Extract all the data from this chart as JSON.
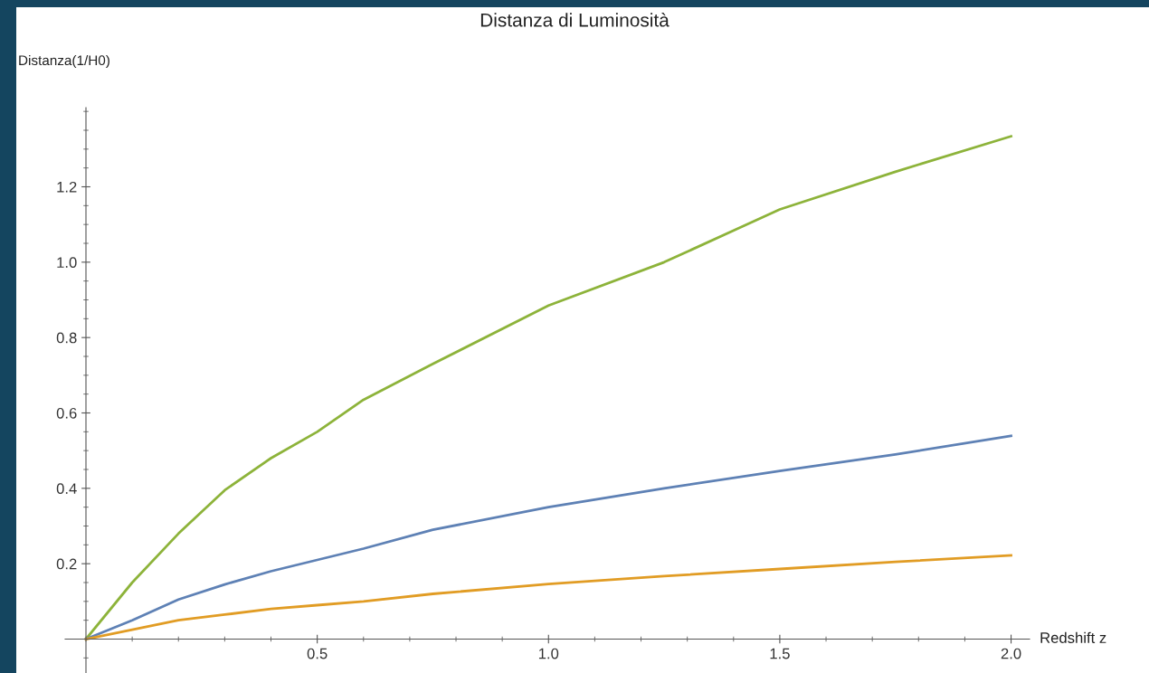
{
  "chart_data": {
    "type": "line",
    "title": "Distanza di Luminosità",
    "xlabel": "Redshift z",
    "ylabel": "Distanza(1/H0)",
    "x": [
      0,
      0.1,
      0.2,
      0.3,
      0.4,
      0.5,
      0.6,
      0.75,
      1.0,
      1.25,
      1.5,
      1.75,
      2.0
    ],
    "series": [
      {
        "color": "#8db33a",
        "values": [
          0,
          0.15,
          0.28,
          0.395,
          0.48,
          0.55,
          0.635,
          0.73,
          0.885,
          1.0,
          1.14,
          1.24,
          1.334
        ]
      },
      {
        "color": "#5e81b5",
        "values": [
          0,
          0.05,
          0.105,
          0.145,
          0.18,
          0.21,
          0.24,
          0.29,
          0.35,
          0.4,
          0.446,
          0.49,
          0.539
        ]
      },
      {
        "color": "#e19c24",
        "values": [
          0,
          0.025,
          0.05,
          0.065,
          0.08,
          0.09,
          0.1,
          0.12,
          0.146,
          0.167,
          0.186,
          0.205,
          0.222
        ]
      }
    ],
    "xlim": [
      -0.045,
      2.04
    ],
    "ylim": [
      -0.09,
      1.41
    ],
    "xticks": [
      0.5,
      {
        "value": 1,
        "label": "1.0"
      },
      1.5,
      {
        "value": 2,
        "label": "2.0"
      }
    ],
    "yticks": [
      0.2,
      0.4,
      0.6,
      0.8,
      {
        "value": 1,
        "label": "1.0"
      },
      1.2
    ],
    "grid": false,
    "legend": false,
    "marker": "none",
    "line_style": "solid"
  }
}
